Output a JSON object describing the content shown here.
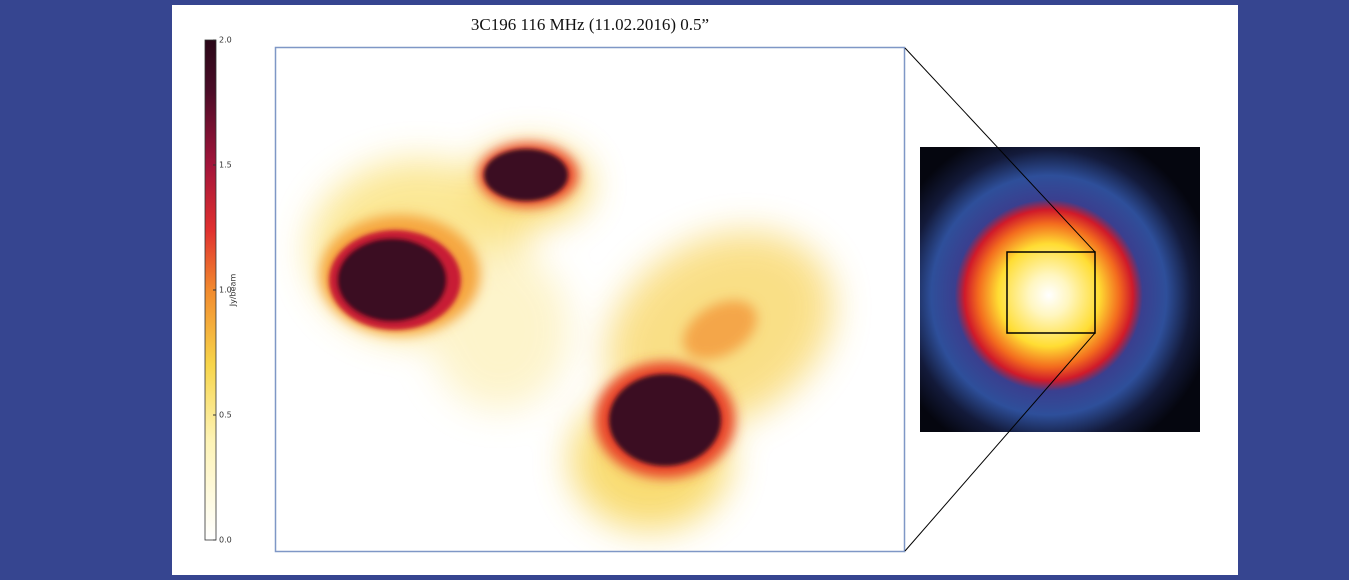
{
  "chart_data": {
    "type": "image",
    "title": "3C196 116 MHz (11.02.2016) 0.5”",
    "colorbar": {
      "label": "Jy/beam",
      "lim": [
        0,
        2.0
      ],
      "ticks": [
        {
          "value": 0,
          "label": "0.0"
        },
        {
          "value": 0.5,
          "label": "0.5"
        },
        {
          "value": 1,
          "label": "1.0"
        },
        {
          "value": 1.5,
          "label": "1.5"
        },
        {
          "value": 2,
          "label": "2.0"
        }
      ]
    }
  }
}
